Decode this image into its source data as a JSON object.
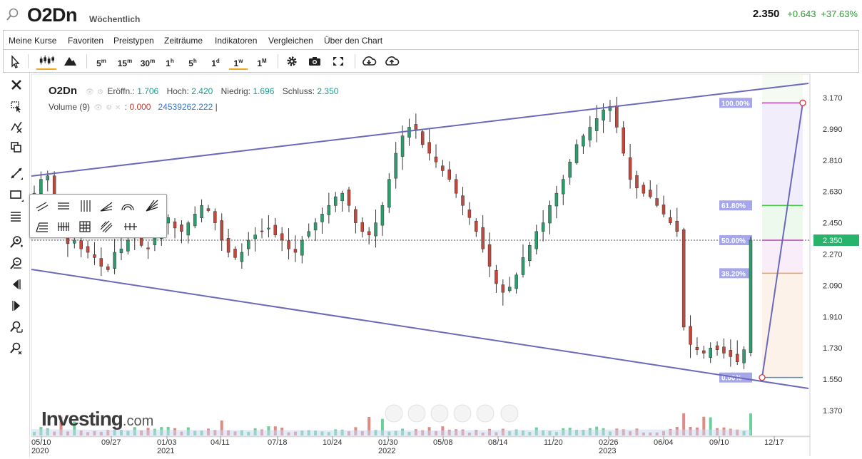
{
  "header": {
    "symbol": "O2Dn",
    "period": "Wöchentlich",
    "last": "2.350",
    "change": "+0.643",
    "change_pct": "+37.63%"
  },
  "menu": [
    "Meine Kurse",
    "Favoriten",
    "Preistypen",
    "Zeiträume",
    "Indikatoren",
    "Vergleichen",
    "Über den Chart"
  ],
  "timeframes": [
    {
      "main": "5",
      "sub": "m"
    },
    {
      "main": "15",
      "sub": "m"
    },
    {
      "main": "30",
      "sub": "m"
    },
    {
      "main": "1",
      "sub": "h"
    },
    {
      "main": "5",
      "sub": "h"
    },
    {
      "main": "1",
      "sub": "d"
    },
    {
      "main": "1",
      "sub": "w"
    },
    {
      "main": "1",
      "sub": "M"
    }
  ],
  "active_timeframe": "1w",
  "legend": {
    "symbol": "O2Dn",
    "open_label": "Eröffn.:",
    "open": "1.706",
    "high_label": "Hoch:",
    "high": "2.420",
    "low_label": "Niedrig:",
    "low": "1.696",
    "close_label": "Schluss:",
    "close": "2.350",
    "volume_label": "Volume (9)",
    "volume_value": "0.000",
    "volume_ma": "24539262.222"
  },
  "logo": {
    "name": "Investing",
    "suffix": ".com"
  },
  "colors": {
    "up": "#2e9d6e",
    "down": "#c4473b",
    "line": "#6b69b8",
    "fib_100": "#b640b6",
    "fib_618": "#3bd03b",
    "fib_382": "#f2a14a",
    "fib_0": "#4a90d9",
    "price_tag": "#27b36a"
  },
  "icons": [
    "search-icon",
    "cursor-icon",
    "candles-icon",
    "mountain-icon",
    "gear-icon",
    "camera-icon",
    "fullscreen-icon",
    "cloud-download-icon",
    "cloud-upload-icon",
    "close-icon",
    "trendline-icon",
    "rectangle-icon",
    "fib-icon",
    "zoom-in-icon",
    "zoom-out-icon",
    "scroll-left-icon",
    "scroll-right-icon"
  ],
  "chart_data": {
    "type": "candlestick",
    "y_ticks": [
      "3.170",
      "2.990",
      "2.810",
      "2.630",
      "2.450",
      "2.270",
      "2.090",
      "1.910",
      "1.730",
      "1.550",
      "1.370"
    ],
    "ylim": [
      1.3,
      3.25
    ],
    "x_ticks": [
      {
        "label": "05/10",
        "year": "2020"
      },
      {
        "label": "09/27",
        "year": ""
      },
      {
        "label": "01/03",
        "year": "2021"
      },
      {
        "label": "04/11",
        "year": ""
      },
      {
        "label": "07/18",
        "year": ""
      },
      {
        "label": "10/24",
        "year": ""
      },
      {
        "label": "01/30",
        "year": "2022"
      },
      {
        "label": "05/08",
        "year": ""
      },
      {
        "label": "08/14",
        "year": ""
      },
      {
        "label": "11/20",
        "year": ""
      },
      {
        "label": "02/26",
        "year": "2023"
      },
      {
        "label": "06/04",
        "year": ""
      },
      {
        "label": "09/10",
        "year": ""
      },
      {
        "label": "12/17",
        "year": ""
      }
    ],
    "current_price": "2.350",
    "current_price_value": 2.35,
    "fib_levels": [
      {
        "label": "100.00%",
        "value": 3.14,
        "color": "#b640b6"
      },
      {
        "label": "61.80%",
        "value": 2.55,
        "color": "#3bd03b"
      },
      {
        "label": "50.00%",
        "value": 2.35,
        "color": "#b640b6"
      },
      {
        "label": "38.20%",
        "value": 2.16,
        "color": "#f2a14a"
      },
      {
        "label": "0.00%",
        "value": 1.56,
        "color": "#4a90d9"
      }
    ],
    "close_path": [
      2.62,
      2.7,
      2.72,
      2.55,
      2.4,
      2.33,
      2.35,
      2.3,
      2.28,
      2.25,
      2.2,
      2.18,
      2.28,
      2.3,
      2.35,
      2.38,
      2.32,
      2.3,
      2.38,
      2.45,
      2.48,
      2.42,
      2.4,
      2.45,
      2.5,
      2.55,
      2.52,
      2.45,
      2.35,
      2.28,
      2.25,
      2.28,
      2.35,
      2.38,
      2.4,
      2.42,
      2.38,
      2.35,
      2.3,
      2.28,
      2.35,
      2.4,
      2.45,
      2.5,
      2.55,
      2.6,
      2.62,
      2.55,
      2.45,
      2.4,
      2.38,
      2.45,
      2.55,
      2.7,
      2.85,
      2.95,
      3.0,
      2.98,
      2.9,
      2.85,
      2.8,
      2.75,
      2.7,
      2.62,
      2.55,
      2.48,
      2.4,
      2.3,
      2.2,
      2.1,
      2.05,
      2.08,
      2.15,
      2.25,
      2.32,
      2.4,
      2.45,
      2.55,
      2.62,
      2.7,
      2.8,
      2.9,
      2.95,
      3.0,
      3.05,
      3.1,
      3.12,
      3.0,
      2.85,
      2.7,
      2.65,
      2.62,
      2.6,
      2.55,
      2.5,
      2.45,
      2.4,
      1.85,
      1.75,
      1.72,
      1.7,
      1.73,
      1.72,
      1.7,
      1.68,
      1.65,
      1.72,
      2.35
    ]
  }
}
